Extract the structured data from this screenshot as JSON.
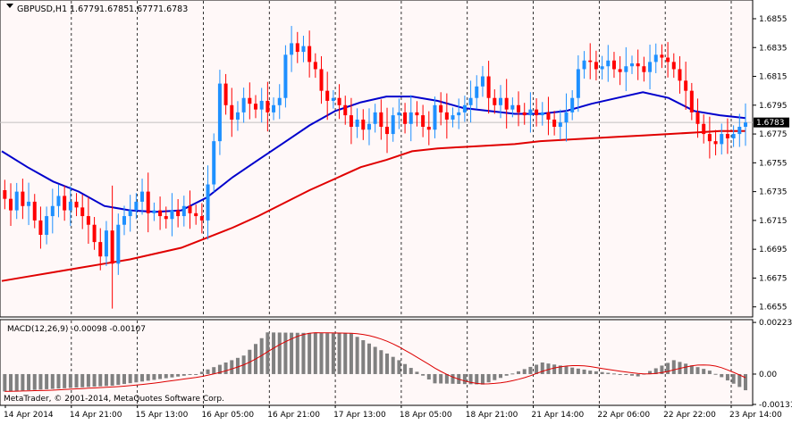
{
  "header": {
    "symbol": "GBPUSD,H1",
    "open": "1.6779",
    "high": "1.6785",
    "low": "1.6777",
    "close": "1.6783"
  },
  "indicator_label": "MACD(12,26,9) -0.00098 -0.00107",
  "copyright": "MetaTrader, © 2001-2014, MetaQuotes Software Corp.",
  "price_badge": "1.6783",
  "colors": {
    "background": "#fff8f8",
    "bull_candle": "#1e90ff",
    "bear_candle": "#ff0000",
    "ma_fast": "#0000cc",
    "ma_slow": "#e00000",
    "macd_hist": "#808080",
    "macd_signal": "#dd0000",
    "grid": "#000000",
    "price_line": "#c0c0c0"
  },
  "chart_data": [
    {
      "type": "candlestick",
      "symbol": "GBPUSD",
      "timeframe": "H1",
      "ylim": [
        1.6648,
        1.6868
      ],
      "y_ticks": [
        "1.6855",
        "1.6835",
        "1.6815",
        "1.6795",
        "1.6775",
        "1.6755",
        "1.6735",
        "1.6715",
        "1.6695",
        "1.6675",
        "1.6655"
      ],
      "current_price": 1.6783,
      "x_ticks": [
        "14 Apr 2014",
        "14 Apr 21:00",
        "15 Apr 13:00",
        "16 Apr 05:00",
        "16 Apr 21:00",
        "17 Apr 13:00",
        "18 Apr 05:00",
        "18 Apr 21:00",
        "21 Apr 14:00",
        "22 Apr 06:00",
        "22 Apr 22:00",
        "23 Apr 14:00"
      ],
      "closes": [
        1.673,
        1.6722,
        1.6735,
        1.6725,
        1.6728,
        1.6715,
        1.6705,
        1.6718,
        1.6725,
        1.6732,
        1.6722,
        1.6728,
        1.6724,
        1.6718,
        1.6712,
        1.67,
        1.669,
        1.6708,
        1.6685,
        1.6712,
        1.6718,
        1.6722,
        1.6728,
        1.6735,
        1.672,
        1.6722,
        1.6718,
        1.6716,
        1.6722,
        1.6718,
        1.6725,
        1.672,
        1.6718,
        1.6715,
        1.674,
        1.677,
        1.681,
        1.6795,
        1.6785,
        1.679,
        1.68,
        1.6796,
        1.6792,
        1.6798,
        1.679,
        1.6795,
        1.68,
        1.683,
        1.6838,
        1.6832,
        1.6836,
        1.6825,
        1.682,
        1.6805,
        1.6798,
        1.68,
        1.6795,
        1.6788,
        1.678,
        1.6785,
        1.6778,
        1.6782,
        1.679,
        1.678,
        1.6775,
        1.6788,
        1.679,
        1.6782,
        1.679,
        1.6788,
        1.678,
        1.6778,
        1.6795,
        1.679,
        1.6785,
        1.6788,
        1.679,
        1.6795,
        1.68,
        1.6808,
        1.6815,
        1.68,
        1.6795,
        1.68,
        1.6792,
        1.6795,
        1.679,
        1.6788,
        1.6792,
        1.6788,
        1.679,
        1.6785,
        1.678,
        1.6783,
        1.679,
        1.68,
        1.682,
        1.6826,
        1.6825,
        1.682,
        1.6822,
        1.6826,
        1.682,
        1.6818,
        1.6822,
        1.6824,
        1.6822,
        1.6818,
        1.6825,
        1.683,
        1.6828,
        1.6825,
        1.682,
        1.6812,
        1.6805,
        1.679,
        1.6782,
        1.6775,
        1.677,
        1.6768,
        1.6775,
        1.6772,
        1.6775,
        1.678,
        1.6783
      ],
      "series": [
        {
          "name": "",
          "style": "line",
          "values": [
            1.6763,
            1.6752,
            1.6742,
            1.6735,
            1.6725,
            1.6722,
            1.6721,
            1.6722,
            1.6731,
            1.6745,
            1.6757,
            1.6769,
            1.6781,
            1.6791,
            1.6797,
            1.6801,
            1.6801,
            1.6798,
            1.6793,
            1.6791,
            1.6789,
            1.6789,
            1.6791,
            1.6796,
            1.68,
            1.6804,
            1.68,
            1.6791,
            1.6788,
            1.6786
          ]
        },
        {
          "name": "",
          "style": "line",
          "values": [
            1.6673,
            1.6676,
            1.6679,
            1.6682,
            1.6685,
            1.6688,
            1.6692,
            1.6696,
            1.6703,
            1.671,
            1.6718,
            1.6727,
            1.6736,
            1.6744,
            1.6752,
            1.6757,
            1.6763,
            1.6765,
            1.6766,
            1.6767,
            1.6768,
            1.677,
            1.6771,
            1.6772,
            1.6773,
            1.6774,
            1.6775,
            1.6776,
            1.6777,
            1.6777
          ]
        }
      ]
    },
    {
      "type": "bar",
      "name": "MACD(12,26,9)",
      "ylim": [
        -0.00135,
        0.00235
      ],
      "y_ticks": [
        "0.00223",
        "0.00",
        "-0.00131"
      ],
      "values": [
        -0.00098
      ],
      "signal": -0.00107,
      "histogram_waypoints": [
        {
          "bar": 0,
          "value": -0.00075
        },
        {
          "bar": 18,
          "value": -0.0005
        },
        {
          "bar": 32,
          "value": 0.0
        },
        {
          "bar": 40,
          "value": 0.0008
        },
        {
          "bar": 44,
          "value": 0.0018
        },
        {
          "bar": 58,
          "value": 0.00175
        },
        {
          "bar": 66,
          "value": 0.0006
        },
        {
          "bar": 72,
          "value": -0.0004
        },
        {
          "bar": 80,
          "value": -0.00045
        },
        {
          "bar": 90,
          "value": 0.0005
        },
        {
          "bar": 98,
          "value": 0.00015
        },
        {
          "bar": 106,
          "value": -0.0001
        },
        {
          "bar": 112,
          "value": 0.0006
        },
        {
          "bar": 118,
          "value": 0.00015
        },
        {
          "bar": 126,
          "value": -0.00098
        }
      ]
    }
  ]
}
